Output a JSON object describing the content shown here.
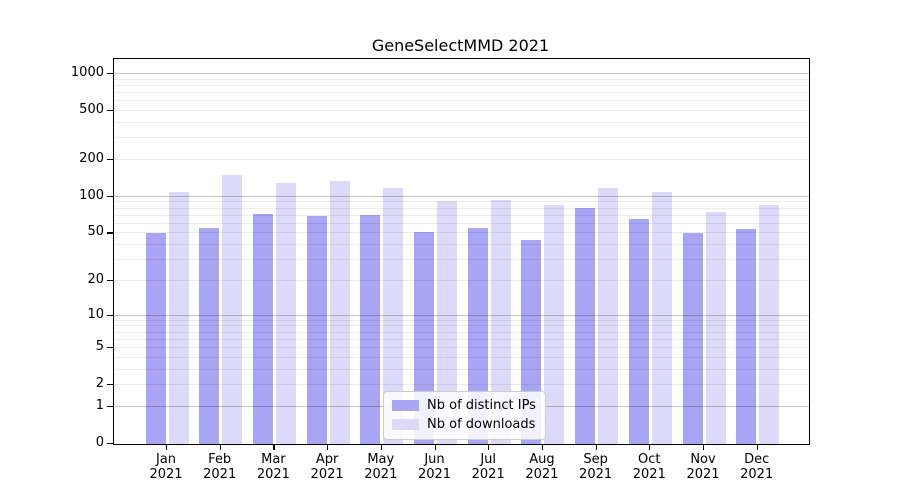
{
  "chart_data": {
    "type": "bar",
    "title": "GeneSelectMMD 2021",
    "year_label": "2021",
    "categories": [
      "Jan",
      "Feb",
      "Mar",
      "Apr",
      "May",
      "Jun",
      "Jul",
      "Aug",
      "Sep",
      "Oct",
      "Nov",
      "Dec"
    ],
    "series": [
      {
        "name": "Nb of distinct IPs",
        "color": "#a8a5f4",
        "values": [
          50,
          56,
          72,
          70,
          71,
          51,
          56,
          44,
          81,
          66,
          50,
          54
        ]
      },
      {
        "name": "Nb of downloads",
        "color": "#dcdaf8",
        "values": [
          109,
          152,
          131,
          136,
          118,
          92,
          94,
          86,
          118,
          109,
          75,
          86
        ]
      }
    ],
    "xlabel": "",
    "ylabel": "",
    "y_scale": "log10(value+1)",
    "ylim": [
      0,
      1320
    ],
    "y_ticks": [
      1000,
      500,
      200,
      100,
      50,
      20,
      10,
      5,
      2,
      1,
      0
    ],
    "grid": {
      "on": true,
      "major_values": [
        1,
        10,
        100,
        1000
      ],
      "minor_step": "2-9 per decade",
      "drawn_over_bars": true
    },
    "legend": {
      "position": "lower-center"
    }
  }
}
